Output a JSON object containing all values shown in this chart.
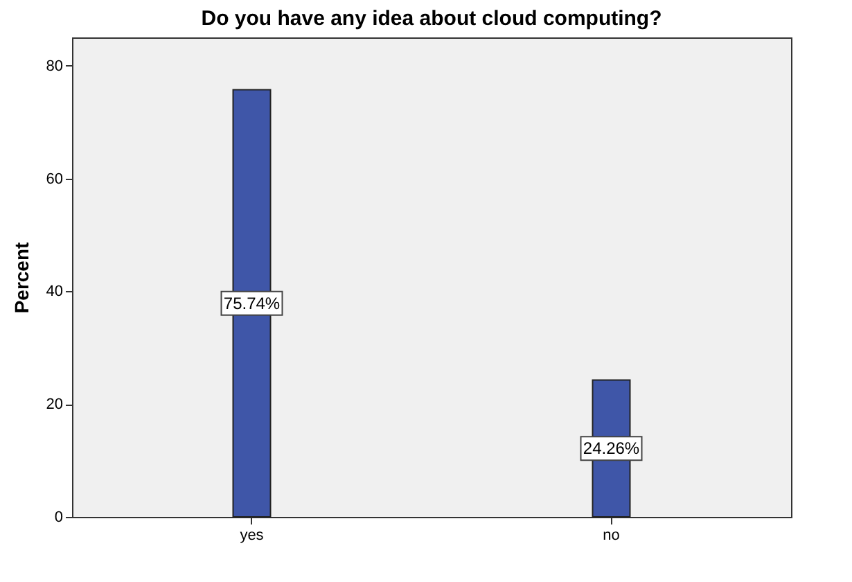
{
  "chart_data": {
    "type": "bar",
    "title": "Do you have any idea about cloud computing?",
    "ylabel": "Percent",
    "categories": [
      "yes",
      "no"
    ],
    "values": [
      75.74,
      24.26
    ],
    "value_labels": [
      "75.74%",
      "24.26%"
    ],
    "color": "#3f56a8",
    "ylim": [
      0,
      85
    ],
    "yticks": [
      0,
      20,
      40,
      60,
      80
    ],
    "grid": false
  }
}
